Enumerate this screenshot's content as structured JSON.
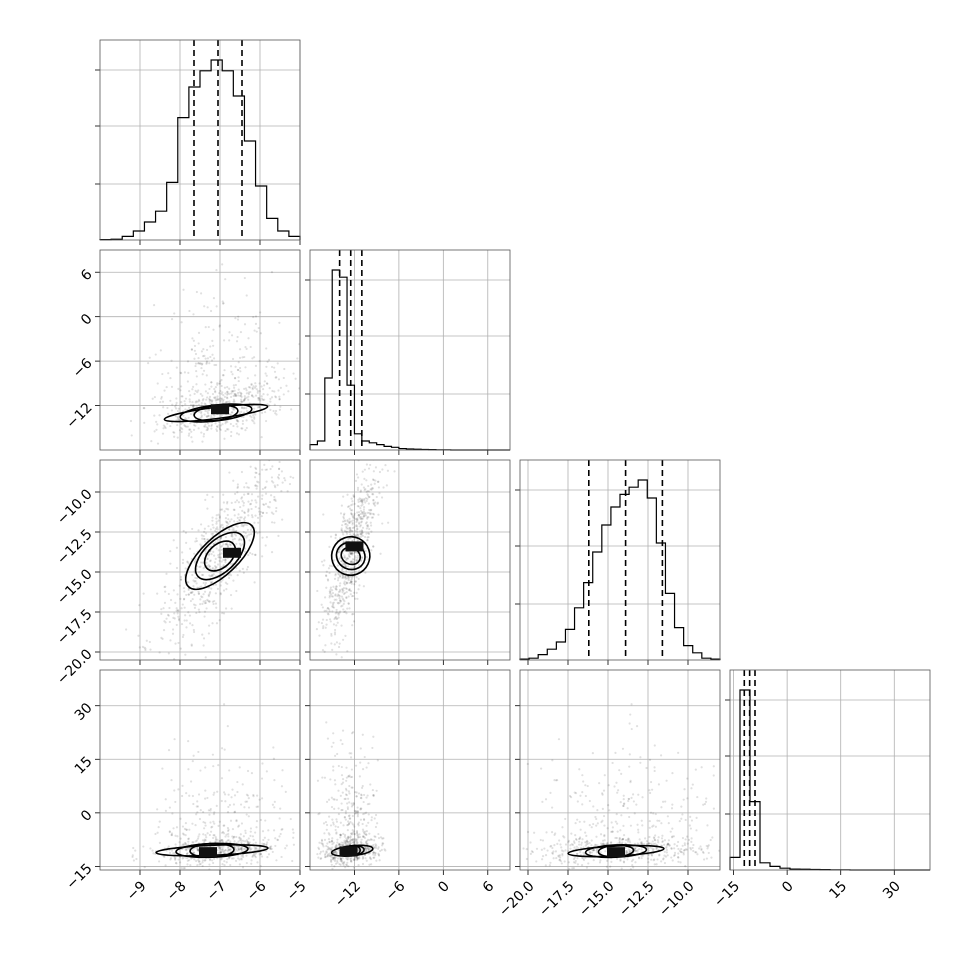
{
  "chart_data": {
    "type": "corner",
    "title": "",
    "parameters": [
      {
        "range": [
          -10.0,
          -5.0
        ],
        "ticks": [
          -9,
          -8,
          -7,
          -6,
          -5
        ],
        "tick_labels": [
          "−9",
          "−8",
          "−7",
          "−6",
          "−5"
        ],
        "hist_bins": [
          0.002,
          0.004,
          0.02,
          0.05,
          0.1,
          0.16,
          0.32,
          0.68,
          0.85,
          0.94,
          1.0,
          0.94,
          0.8,
          0.55,
          0.3,
          0.12,
          0.05,
          0.02
        ],
        "quantiles": [
          -7.65,
          -7.05,
          -6.45
        ],
        "mean": -7.0,
        "sd": 0.6
      },
      {
        "range": [
          -18.0,
          9.0
        ],
        "ticks": [
          -12,
          -6,
          0,
          6
        ],
        "tick_labels": [
          "−12",
          "−6",
          "0",
          "6"
        ],
        "hist_bins": [
          0.03,
          0.05,
          0.4,
          1.0,
          0.96,
          0.36,
          0.09,
          0.05,
          0.04,
          0.03,
          0.02,
          0.015,
          0.008,
          0.006,
          0.004,
          0.003,
          0.002,
          0.001,
          0.001,
          0.0,
          0.0,
          0.0,
          0.0,
          0.0,
          0.0,
          0.0,
          0.0
        ],
        "quantiles": [
          -14.0,
          -12.5,
          -11.0
        ],
        "mean": -12.6,
        "sd": 1.4
      },
      {
        "range": [
          -20.5,
          -8.0
        ],
        "ticks": [
          -20.0,
          -17.5,
          -15.0,
          -12.5,
          -10.0
        ],
        "tick_labels": [
          "−20.0",
          "−17.5",
          "−15.0",
          "−12.5",
          "−10.0"
        ],
        "hist_bins": [
          0.005,
          0.01,
          0.03,
          0.06,
          0.1,
          0.17,
          0.29,
          0.43,
          0.6,
          0.75,
          0.85,
          0.92,
          0.96,
          1.0,
          0.9,
          0.65,
          0.37,
          0.18,
          0.08,
          0.04,
          0.01,
          0.005
        ],
        "quantiles": [
          -16.2,
          -13.9,
          -11.6
        ],
        "mean": -13.9,
        "sd": 2.2
      },
      {
        "range": [
          -16.0,
          40.0
        ],
        "ticks": [
          -15,
          0,
          15,
          30
        ],
        "tick_labels": [
          "−15",
          "0",
          "15",
          "30"
        ],
        "hist_bins": [
          0.07,
          1.0,
          0.38,
          0.04,
          0.02,
          0.01,
          0.005,
          0.004,
          0.003,
          0.002,
          0.001,
          0.001,
          0.0,
          0.0,
          0.0,
          0.0,
          0.0,
          0.0,
          0.0,
          0.0
        ],
        "quantiles": [
          -12.0,
          -10.5,
          -9.0
        ],
        "mean": -10.5,
        "sd": 1.5
      }
    ],
    "pairs": [
      {
        "x": 0,
        "y": 1,
        "center": [
          -7.1,
          -13.0
        ],
        "corr": 0.4,
        "levels": [
          [
            1.3,
            2.2
          ],
          [
            0.9,
            1.4
          ],
          [
            0.55,
            0.85
          ]
        ],
        "blob": [
          -7.0,
          -12.5
        ]
      },
      {
        "x": 0,
        "y": 2,
        "center": [
          -7.0,
          -14.0
        ],
        "corr": 0.8,
        "levels": [
          [
            1.1,
            3.3
          ],
          [
            0.75,
            2.2
          ],
          [
            0.45,
            1.3
          ]
        ],
        "blob": [
          -6.7,
          -13.8
        ]
      },
      {
        "x": 1,
        "y": 2,
        "center": [
          -12.5,
          -14.0
        ],
        "corr": 0.75,
        "levels": [
          [
            2.6,
            3.4
          ],
          [
            1.8,
            2.3
          ],
          [
            1.1,
            1.4
          ]
        ],
        "blob": [
          -12.0,
          -13.4
        ]
      },
      {
        "x": 0,
        "y": 3,
        "center": [
          -7.2,
          -10.5
        ],
        "corr": 0.2,
        "levels": [
          [
            1.4,
            3.2
          ],
          [
            0.9,
            2.0
          ],
          [
            0.55,
            1.2
          ]
        ],
        "blob": [
          -7.3,
          -11.0
        ]
      },
      {
        "x": 1,
        "y": 3,
        "center": [
          -12.3,
          -10.6
        ],
        "corr": 0.15,
        "levels": [
          [
            2.8,
            4.0
          ],
          [
            1.6,
            2.2
          ],
          [
            0.8,
            1.2
          ]
        ],
        "blob": [
          -12.8,
          -10.8
        ]
      },
      {
        "x": 2,
        "y": 3,
        "center": [
          -14.5,
          -10.7
        ],
        "corr": 0.2,
        "levels": [
          [
            3.0,
            3.4
          ],
          [
            1.9,
            2.0
          ],
          [
            1.1,
            1.2
          ]
        ],
        "blob": [
          -14.5,
          -11.0
        ]
      }
    ],
    "grid": true,
    "legend": "none",
    "xlabel": "",
    "ylabel": ""
  }
}
